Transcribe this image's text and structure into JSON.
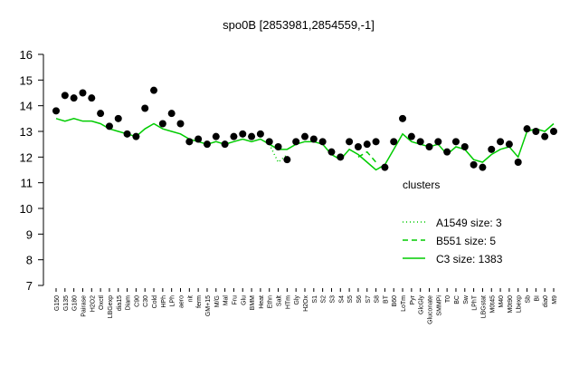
{
  "chart_data": {
    "type": "line",
    "title": "spo0B [2853981,2854559,-1]",
    "categories": [
      "G150",
      "G135",
      "G180",
      "Pairase",
      "H2O2",
      "Oxctl",
      "LBGexp",
      "dia15",
      "Diam",
      "C90",
      "C30",
      "Cold",
      "HPh",
      "LPh",
      "aero",
      "nit",
      "ferm",
      "GM+15",
      "M/G",
      "Mal",
      "Fru",
      "Glu",
      "BMM",
      "Heat",
      "Ethn",
      "Salt",
      "HTm",
      "Gly",
      "H2Ox",
      "S1",
      "S2",
      "S3",
      "S4",
      "S5",
      "S6",
      "S7",
      "S8",
      "BT",
      "B60",
      "LoTm",
      "Pyr",
      "GlcGly",
      "Gluconate",
      "SMMPi",
      "T0",
      "BC",
      "Sw",
      "LPhT",
      "LBGstat",
      "M0t45",
      "M40",
      "M0t90",
      "Lbexp",
      "Sb",
      "BI",
      "dia0",
      "M9"
    ],
    "points": {
      "color": "#000000",
      "values": [
        13.8,
        14.4,
        14.3,
        14.5,
        14.3,
        13.7,
        13.2,
        13.5,
        12.9,
        12.8,
        13.9,
        14.6,
        13.3,
        13.7,
        13.3,
        12.6,
        12.7,
        12.5,
        12.8,
        12.5,
        12.8,
        12.9,
        12.8,
        12.9,
        12.6,
        12.4,
        11.9,
        12.6,
        12.8,
        12.7,
        12.6,
        12.2,
        12.0,
        12.6,
        12.4,
        12.5,
        12.6,
        11.6,
        12.6,
        13.5,
        12.8,
        12.6,
        12.4,
        12.6,
        12.2,
        12.6,
        12.4,
        11.7,
        11.6,
        12.3,
        12.6,
        12.5,
        11.8,
        13.1,
        13.0,
        12.8,
        13.0
      ]
    },
    "series": [
      {
        "name": "A1549 size: 3",
        "color": "#00cc00",
        "dash": "1,3",
        "values": [
          null,
          null,
          null,
          null,
          null,
          null,
          null,
          null,
          null,
          null,
          null,
          null,
          null,
          null,
          null,
          null,
          null,
          null,
          null,
          null,
          null,
          null,
          null,
          null,
          12.5,
          11.8,
          12.1,
          null,
          null,
          null,
          null,
          null,
          null,
          null,
          null,
          null,
          null,
          null,
          null,
          null,
          null,
          null,
          null,
          null,
          null,
          null,
          null,
          null,
          null,
          null,
          null,
          null,
          null,
          null,
          null,
          null,
          null
        ]
      },
      {
        "name": "B551 size: 5",
        "color": "#00cc00",
        "dash": "6,4",
        "values": [
          null,
          null,
          null,
          null,
          null,
          null,
          null,
          null,
          null,
          null,
          null,
          null,
          null,
          null,
          null,
          null,
          null,
          null,
          null,
          null,
          null,
          null,
          null,
          null,
          null,
          null,
          null,
          null,
          null,
          null,
          null,
          null,
          null,
          null,
          12.0,
          12.2,
          11.8,
          null,
          null,
          null,
          null,
          null,
          null,
          null,
          null,
          null,
          null,
          null,
          null,
          null,
          null,
          null,
          null,
          null,
          null,
          null,
          null
        ]
      },
      {
        "name": "C3 size: 1383",
        "color": "#00cc00",
        "dash": "",
        "values": [
          13.5,
          13.4,
          13.5,
          13.4,
          13.4,
          13.3,
          13.1,
          13.0,
          12.9,
          12.8,
          13.1,
          13.3,
          13.1,
          13.0,
          12.9,
          12.7,
          12.6,
          12.5,
          12.6,
          12.5,
          12.6,
          12.7,
          12.6,
          12.7,
          12.5,
          12.3,
          12.3,
          12.5,
          12.6,
          12.6,
          12.5,
          12.1,
          11.9,
          12.3,
          12.1,
          11.8,
          11.5,
          11.7,
          12.3,
          12.9,
          12.6,
          12.5,
          12.4,
          12.5,
          12.1,
          12.4,
          12.3,
          11.9,
          11.8,
          12.1,
          12.3,
          12.4,
          12.0,
          13.0,
          13.1,
          13.0,
          13.3
        ]
      }
    ],
    "legend_title": "clusters",
    "ylim": [
      7,
      16
    ],
    "yticks": [
      7,
      8,
      9,
      10,
      11,
      12,
      13,
      14,
      15,
      16
    ]
  }
}
